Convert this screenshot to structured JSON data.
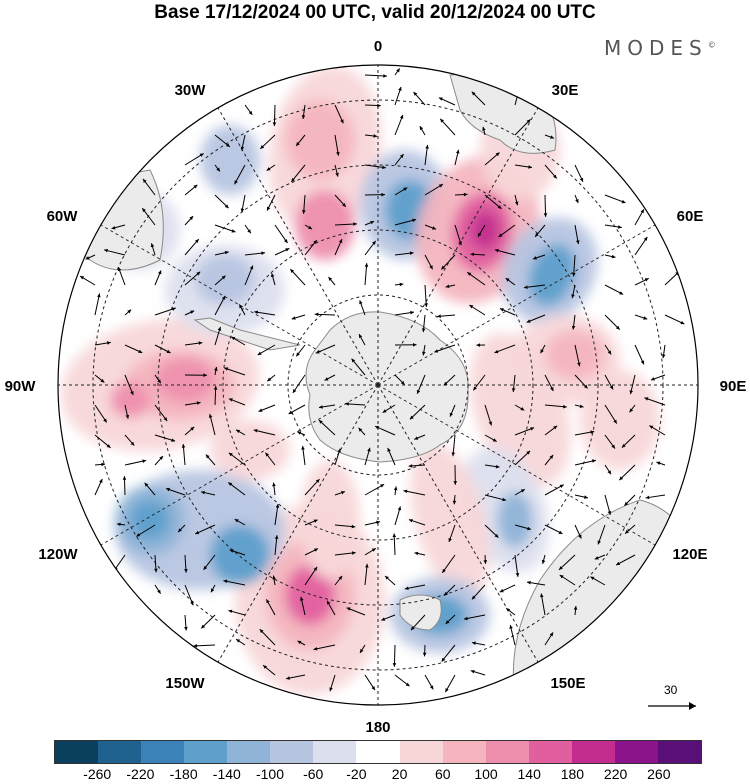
{
  "title": "Base 17/12/2024 00 UTC, valid 20/12/2024 00 UTC",
  "brand": "MODES",
  "brand_mark": "©",
  "longitude_labels": {
    "lon_0": "0",
    "lon_30e": "30E",
    "lon_60e": "60E",
    "lon_90e": "90E",
    "lon_120e": "120E",
    "lon_150e": "150E",
    "lon_180": "180",
    "lon_150w": "150W",
    "lon_120w": "120W",
    "lon_90w": "90W",
    "lon_60w": "60W",
    "lon_30w": "30W"
  },
  "vector_reference": {
    "value": "30"
  },
  "colorbar": {
    "tick_labels": [
      "-260",
      "-220",
      "-180",
      "-140",
      "-100",
      "-60",
      "-20",
      "20",
      "60",
      "100",
      "140",
      "180",
      "220",
      "260"
    ],
    "colors": [
      "#0b3f5e",
      "#1f618f",
      "#3b82b8",
      "#5e9fcc",
      "#8fb4d8",
      "#b7c5e1",
      "#dcdfee",
      "#ffffff",
      "#f8d7d9",
      "#f4b5bf",
      "#ee8fae",
      "#e25f9f",
      "#c22d8f",
      "#8c148a",
      "#5a0f78"
    ]
  },
  "colors": {
    "land": "#ebebeb",
    "coast": "#8a8a8a",
    "grid": "#222222"
  }
}
